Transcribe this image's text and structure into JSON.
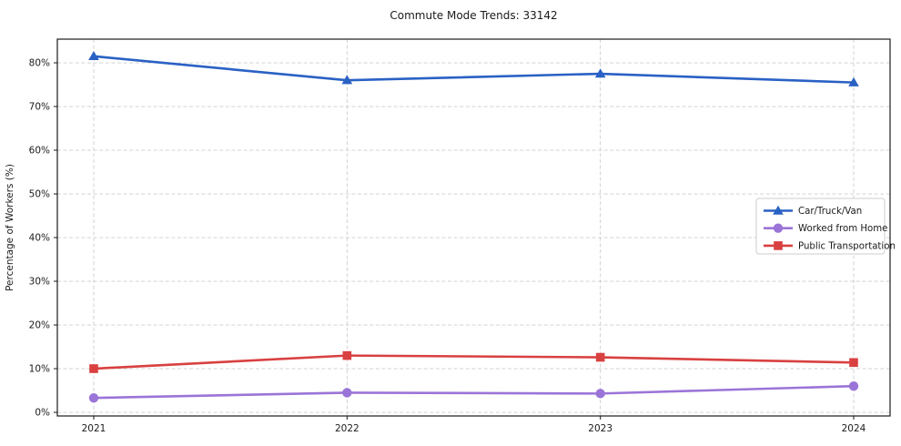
{
  "figure": {
    "background": "#ffffff",
    "frame_color": "#1a1a1a",
    "grid_color": "#cccccc",
    "text_color": "#1a1a1a"
  },
  "chart_data": {
    "type": "line",
    "title": "Commute Mode Trends: 33142",
    "xlabel": "",
    "ylabel": "Percentage of Workers (%)",
    "x": [
      "2021",
      "2022",
      "2023",
      "2024"
    ],
    "series": [
      {
        "name": "Car/Truck/Van",
        "values": [
          81.5,
          76.0,
          77.5,
          75.5
        ],
        "color": "#2a61c4",
        "marker": "triangle"
      },
      {
        "name": "Worked from Home",
        "values": [
          3.3,
          4.5,
          4.3,
          6.0
        ],
        "color": "#9b74d8",
        "marker": "circle"
      },
      {
        "name": "Public Transportation",
        "values": [
          10.0,
          13.0,
          12.6,
          11.4
        ],
        "color": "#d94040",
        "marker": "square"
      }
    ],
    "ylim": [
      -0.83,
      85.42
    ],
    "yticks": [
      0,
      10,
      20,
      30,
      40,
      50,
      60,
      70,
      80
    ],
    "ytick_labels": [
      "0%",
      "10%",
      "20%",
      "30%",
      "40%",
      "50%",
      "60%",
      "70%",
      "80%"
    ],
    "grid": true,
    "grid_style": "dashed",
    "legend_position": "center right"
  }
}
